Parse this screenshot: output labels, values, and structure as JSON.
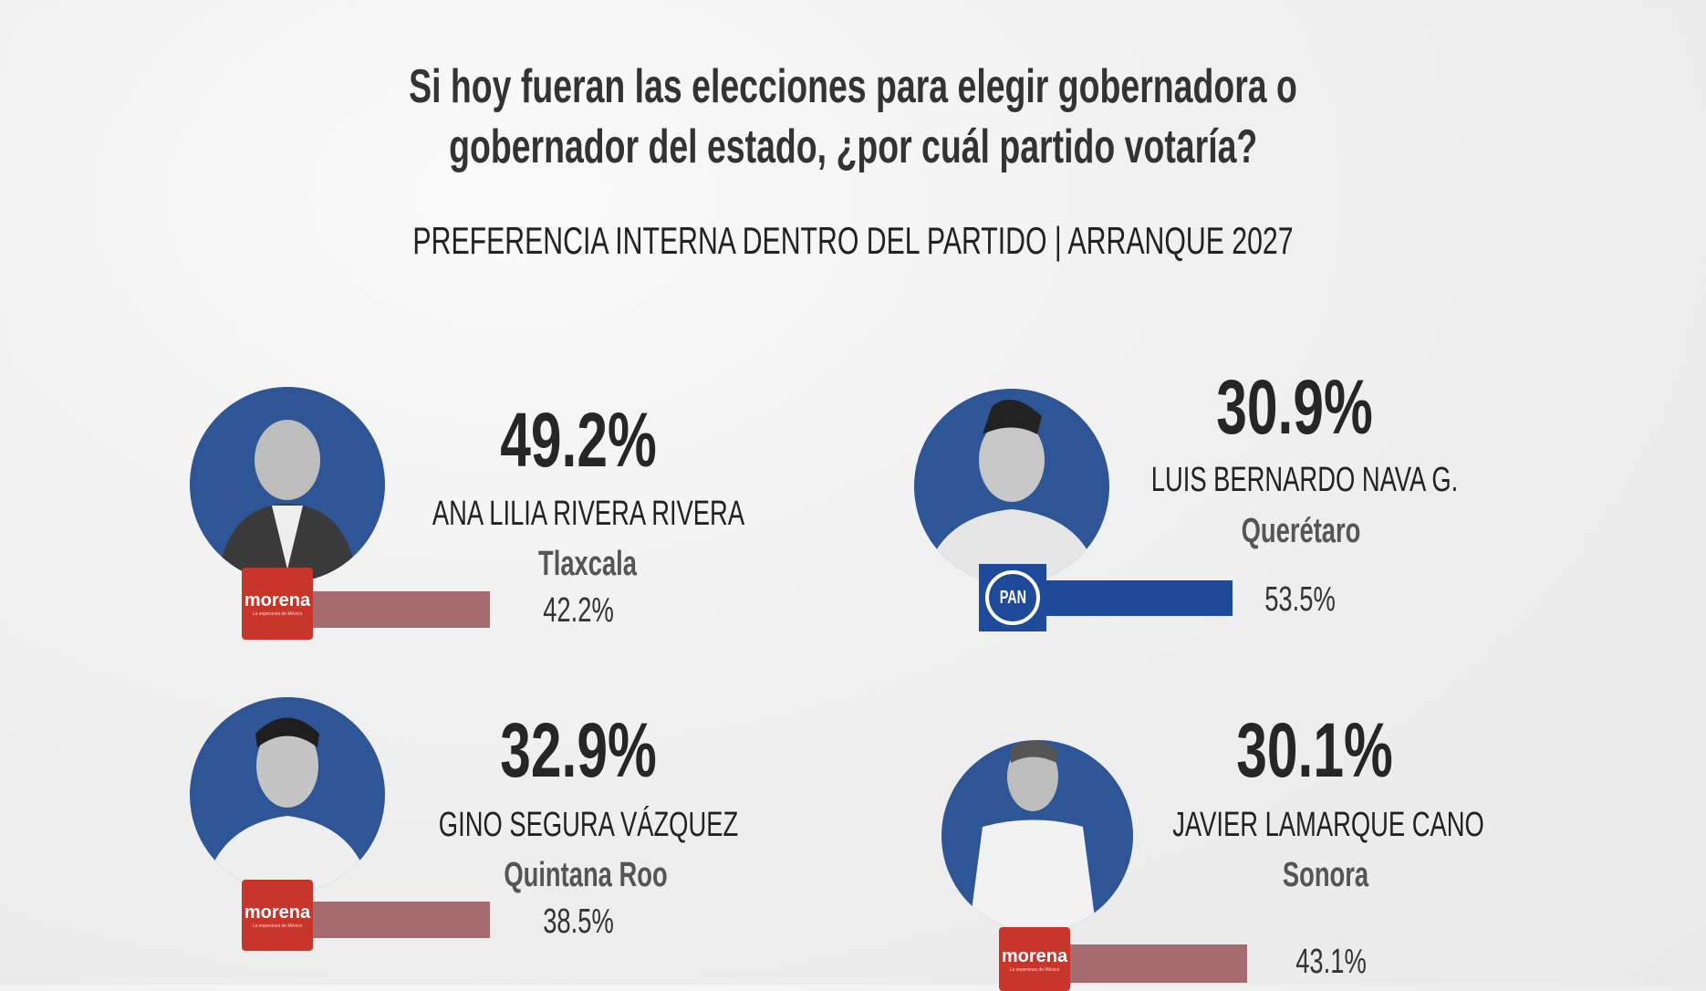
{
  "header": {
    "question_line1": "Si hoy fueran las elecciones para elegir gobernadora o",
    "question_line2": "gobernador del estado, ¿por cuál partido votaría?",
    "subtitle": "PREFERENCIA INTERNA DENTRO DEL PARTIDO | ARRANQUE 2027"
  },
  "candidates": [
    {
      "percent": "49.2%",
      "name": "ANA LILIA RIVERA RIVERA",
      "state": "Tlaxcala",
      "party": "morena",
      "party_tagline": "La esperanza de México",
      "party_percent": "42.2%",
      "party_value": 42.2,
      "party_color": "#a56b6f"
    },
    {
      "percent": "30.9%",
      "name": "LUIS BERNARDO NAVA G.",
      "state": "Querétaro",
      "party": "PAN",
      "party_percent": "53.5%",
      "party_value": 53.5,
      "party_color": "#1f4a9a"
    },
    {
      "percent": "32.9%",
      "name": "GINO SEGURA VÁZQUEZ",
      "state": "Quintana Roo",
      "party": "morena",
      "party_tagline": "La esperanza de México",
      "party_percent": "38.5%",
      "party_value": 38.5,
      "party_color": "#a56b6f"
    },
    {
      "percent": "30.1%",
      "name": "JAVIER LAMARQUE CANO",
      "state": "Sonora",
      "party": "morena",
      "party_tagline": "La esperanza de México",
      "party_percent": "43.1%",
      "party_value": 43.1,
      "party_color": "#a56b6f"
    }
  ],
  "colors": {
    "portrait_bg": "#2e5596",
    "morena": "#c8352b",
    "pan": "#1f4a9a"
  }
}
